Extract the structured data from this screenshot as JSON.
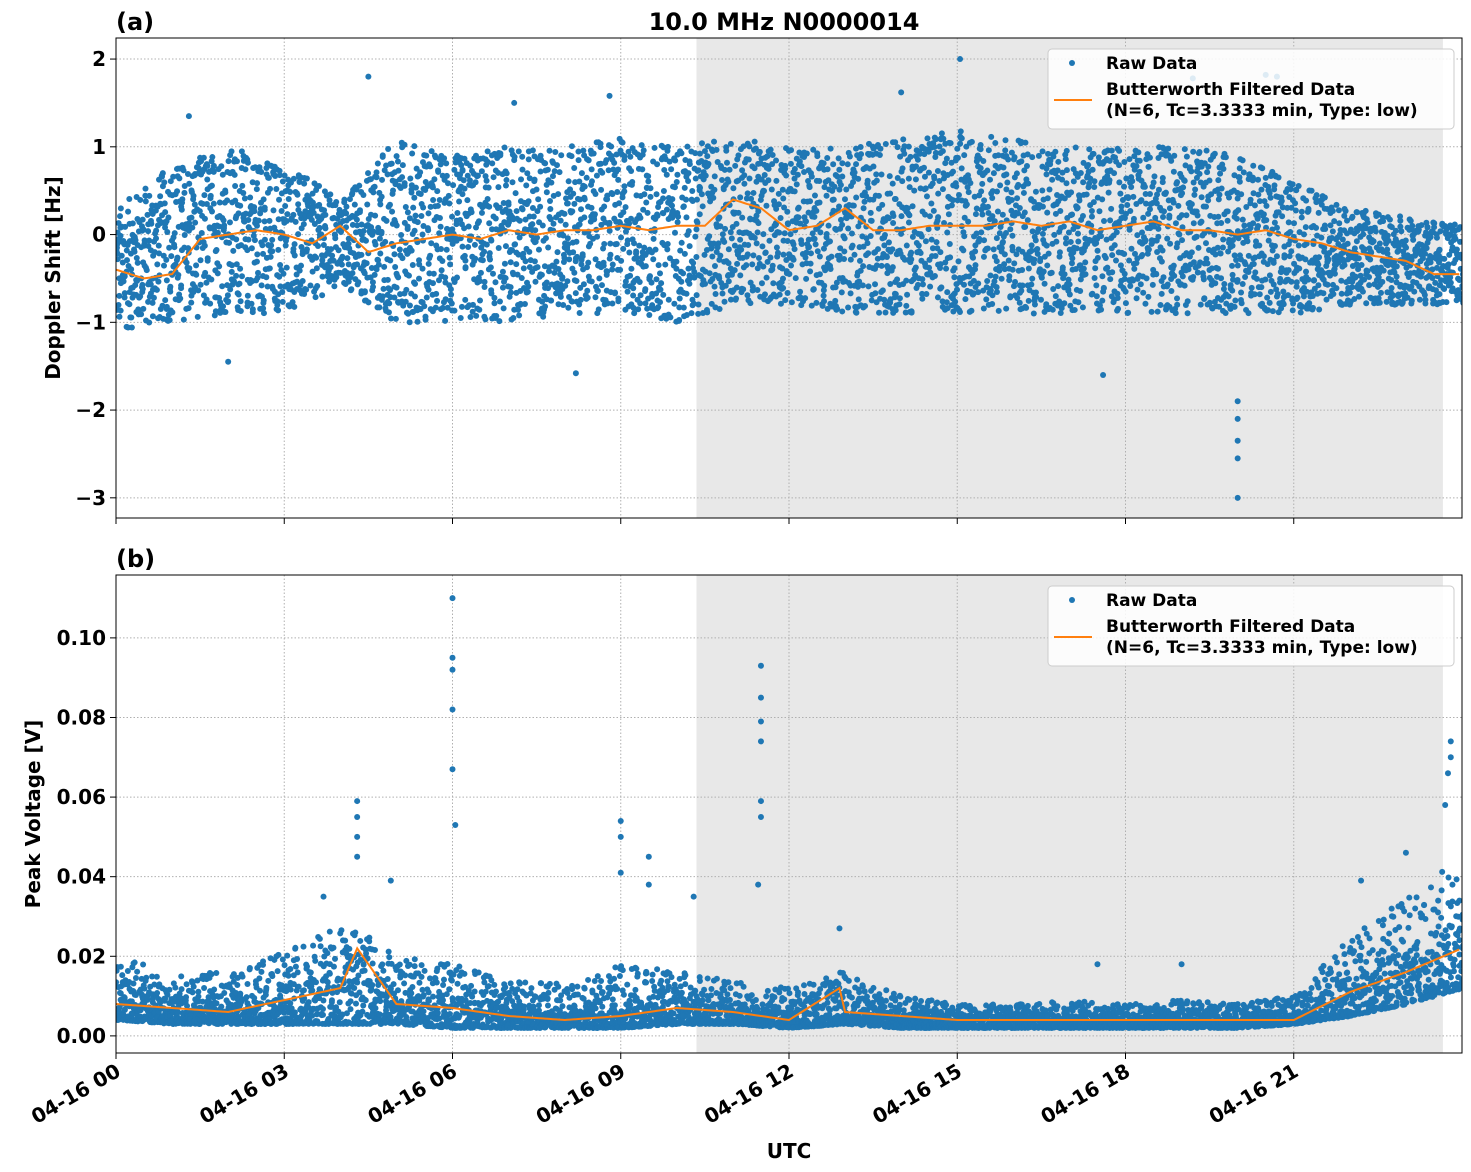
{
  "title": "10.0 MHz N0000014",
  "colors": {
    "raw": "#1f77b4",
    "filtered": "#ff7f0e",
    "shade": "#e8e8e8",
    "grid": "#b0b0b0"
  },
  "legend": {
    "raw": "Raw Data",
    "filtered_line1": "Butterworth Filtered Data",
    "filtered_line2": "(N=6, Tc=3.3333 min, Type: low)",
    "placement": "upper-right"
  },
  "chart_data": [
    {
      "type": "scatter",
      "panel_label": "(a)",
      "xlabel": "",
      "ylabel": "Doppler Shift [Hz]",
      "xlim_hours_utc": [
        0,
        24
      ],
      "ylim": [
        -3.23,
        2.24
      ],
      "grid": true,
      "yticks": [
        2,
        1,
        0,
        -1,
        -2,
        -3
      ],
      "ytick_labels": [
        "2",
        "1",
        "0",
        "−1",
        "−2",
        "−3"
      ],
      "shaded_interval_hours_utc": [
        10.35,
        23.66
      ],
      "raw_band_hours": [
        0,
        1,
        2,
        3,
        4,
        5,
        6,
        7,
        8,
        9,
        10,
        11,
        12,
        13,
        14,
        15,
        16,
        17,
        18,
        19,
        20,
        21,
        22,
        23,
        24
      ],
      "raw_band_low": [
        -1.1,
        -1.0,
        -0.9,
        -0.9,
        -0.6,
        -1.0,
        -1.0,
        -1.0,
        -0.9,
        -0.9,
        -1.0,
        -0.8,
        -0.8,
        -0.9,
        -0.9,
        -0.9,
        -0.9,
        -0.9,
        -0.9,
        -0.9,
        -0.9,
        -0.9,
        -0.8,
        -0.8,
        -0.8
      ],
      "raw_band_high": [
        0.3,
        0.8,
        1.0,
        0.8,
        0.4,
        1.1,
        0.9,
        1.0,
        1.0,
        1.1,
        1.0,
        1.1,
        1.0,
        1.0,
        1.1,
        1.2,
        1.1,
        1.0,
        1.0,
        1.0,
        0.9,
        0.6,
        0.3,
        0.2,
        0.1
      ],
      "raw_outliers": [
        [
          20.0,
          -3.0
        ],
        [
          20.0,
          -2.55
        ],
        [
          20.0,
          -2.35
        ],
        [
          20.0,
          -2.1
        ],
        [
          20.0,
          -1.9
        ],
        [
          15.05,
          2.0
        ],
        [
          4.5,
          1.8
        ],
        [
          19.2,
          1.78
        ],
        [
          20.5,
          1.82
        ],
        [
          20.7,
          1.8
        ],
        [
          1.3,
          1.35
        ],
        [
          7.1,
          1.5
        ],
        [
          8.8,
          1.58
        ],
        [
          2.0,
          -1.45
        ],
        [
          17.6,
          -1.6
        ],
        [
          8.2,
          -1.58
        ],
        [
          14.0,
          1.62
        ]
      ],
      "filtered_hours": [
        0,
        0.5,
        1,
        1.5,
        2,
        2.5,
        3,
        3.5,
        4,
        4.5,
        5,
        5.5,
        6,
        6.5,
        7,
        7.5,
        8,
        8.5,
        9,
        9.5,
        10,
        10.5,
        11,
        11.5,
        12,
        12.5,
        13,
        13.5,
        14,
        14.5,
        15,
        15.5,
        16,
        16.5,
        17,
        17.5,
        18,
        18.5,
        19,
        19.5,
        20,
        20.5,
        21,
        21.5,
        22,
        22.5,
        23,
        23.5,
        24
      ],
      "filtered_values": [
        -0.4,
        -0.5,
        -0.45,
        -0.05,
        0.0,
        0.05,
        0.0,
        -0.1,
        0.1,
        -0.2,
        -0.1,
        -0.05,
        0.0,
        -0.05,
        0.05,
        0.0,
        0.05,
        0.05,
        0.1,
        0.05,
        0.1,
        0.1,
        0.4,
        0.3,
        0.05,
        0.1,
        0.3,
        0.05,
        0.05,
        0.1,
        0.1,
        0.1,
        0.15,
        0.1,
        0.15,
        0.05,
        0.1,
        0.15,
        0.05,
        0.05,
        0.0,
        0.05,
        -0.05,
        -0.1,
        -0.2,
        -0.25,
        -0.3,
        -0.45,
        -0.45
      ]
    },
    {
      "type": "scatter",
      "panel_label": "(b)",
      "xlabel": "UTC",
      "ylabel": "Peak Voltage [V]",
      "xlim_hours_utc": [
        0,
        24
      ],
      "ylim": [
        -0.0043,
        0.1158
      ],
      "grid": true,
      "yticks": [
        0.0,
        0.02,
        0.04,
        0.06,
        0.08,
        0.1
      ],
      "ytick_labels": [
        "0.00",
        "0.02",
        "0.04",
        "0.06",
        "0.08",
        "0.10"
      ],
      "xticks_hours": [
        0,
        3,
        6,
        9,
        12,
        15,
        18,
        21
      ],
      "xtick_labels": [
        "04-16 00",
        "04-16 03",
        "04-16 06",
        "04-16 09",
        "04-16 12",
        "04-16 15",
        "04-16 18",
        "04-16 21"
      ],
      "shaded_interval_hours_utc": [
        10.35,
        23.66
      ],
      "raw_band_hours": [
        0,
        1,
        2,
        3,
        4,
        5,
        6,
        7,
        8,
        9,
        10,
        11,
        12,
        13,
        14,
        15,
        16,
        17,
        18,
        19,
        20,
        21,
        22,
        23,
        24
      ],
      "raw_band_low": [
        0.004,
        0.003,
        0.003,
        0.003,
        0.003,
        0.003,
        0.002,
        0.002,
        0.002,
        0.002,
        0.003,
        0.003,
        0.002,
        0.003,
        0.002,
        0.002,
        0.002,
        0.002,
        0.002,
        0.002,
        0.002,
        0.003,
        0.005,
        0.008,
        0.012
      ],
      "raw_band_high": [
        0.02,
        0.016,
        0.016,
        0.022,
        0.03,
        0.02,
        0.018,
        0.014,
        0.013,
        0.018,
        0.016,
        0.014,
        0.012,
        0.016,
        0.01,
        0.008,
        0.008,
        0.009,
        0.008,
        0.009,
        0.008,
        0.01,
        0.025,
        0.035,
        0.045
      ],
      "raw_outliers": [
        [
          4.3,
          0.059
        ],
        [
          4.3,
          0.055
        ],
        [
          4.3,
          0.05
        ],
        [
          4.3,
          0.045
        ],
        [
          6.0,
          0.11
        ],
        [
          6.0,
          0.095
        ],
        [
          6.0,
          0.092
        ],
        [
          6.0,
          0.082
        ],
        [
          6.0,
          0.067
        ],
        [
          6.05,
          0.053
        ],
        [
          9.0,
          0.054
        ],
        [
          9.0,
          0.05
        ],
        [
          9.0,
          0.041
        ],
        [
          9.5,
          0.045
        ],
        [
          9.5,
          0.038
        ],
        [
          10.3,
          0.035
        ],
        [
          11.5,
          0.093
        ],
        [
          11.5,
          0.085
        ],
        [
          11.5,
          0.079
        ],
        [
          11.5,
          0.074
        ],
        [
          11.5,
          0.059
        ],
        [
          11.5,
          0.055
        ],
        [
          11.45,
          0.038
        ],
        [
          12.9,
          0.027
        ],
        [
          3.7,
          0.035
        ],
        [
          4.9,
          0.039
        ],
        [
          17.5,
          0.018
        ],
        [
          19.0,
          0.018
        ],
        [
          23.8,
          0.074
        ],
        [
          23.8,
          0.07
        ],
        [
          23.75,
          0.066
        ],
        [
          23.7,
          0.058
        ],
        [
          23.0,
          0.046
        ],
        [
          22.2,
          0.039
        ]
      ],
      "filtered_hours": [
        0,
        1,
        2,
        3,
        4,
        4.3,
        5,
        6,
        7,
        8,
        9,
        10,
        11,
        12,
        12.9,
        13,
        14,
        15,
        16,
        17,
        18,
        19,
        20,
        21,
        22,
        23,
        24
      ],
      "filtered_values": [
        0.008,
        0.007,
        0.006,
        0.009,
        0.012,
        0.022,
        0.008,
        0.007,
        0.005,
        0.004,
        0.005,
        0.007,
        0.006,
        0.004,
        0.012,
        0.006,
        0.005,
        0.004,
        0.004,
        0.004,
        0.004,
        0.004,
        0.004,
        0.004,
        0.011,
        0.016,
        0.022
      ]
    }
  ]
}
